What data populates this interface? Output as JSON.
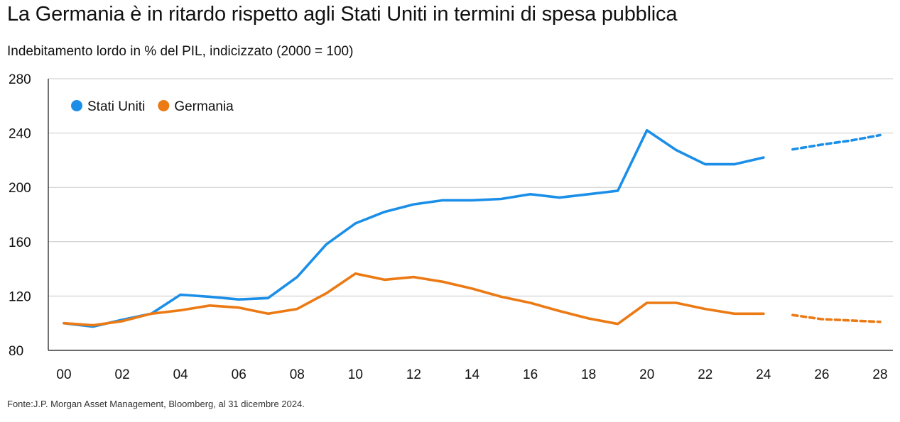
{
  "title": "La Germania è in ritardo rispetto agli Stati Uniti in termini di spesa pubblica",
  "subtitle": "Indebitamento lordo in % del PIL, indicizzato (2000 = 100)",
  "source": "Fonte:J.P. Morgan Asset Management, Bloomberg, al 31 dicembre 2024.",
  "chart_data": {
    "type": "line",
    "title": "La Germania è in ritardo rispetto agli Stati Uniti in termini di spesa pubblica",
    "subtitle": "Indebitamento lordo in % del PIL, indicizzato (2000 = 100)",
    "xlabel": "",
    "ylabel": "",
    "xlim": [
      2000,
      2028
    ],
    "ylim": [
      80,
      280
    ],
    "x_ticks": [
      2000,
      2002,
      2004,
      2006,
      2008,
      2010,
      2012,
      2014,
      2016,
      2018,
      2020,
      2022,
      2024,
      2026,
      2028
    ],
    "x_tick_labels": [
      "00",
      "02",
      "04",
      "06",
      "08",
      "10",
      "12",
      "14",
      "16",
      "18",
      "20",
      "22",
      "24",
      "26",
      "28"
    ],
    "y_ticks": [
      80,
      120,
      160,
      200,
      240,
      280
    ],
    "y_tick_labels": [
      "80",
      "120",
      "160",
      "200",
      "240",
      "280"
    ],
    "grid": "horizontal",
    "legend_position": "top-left",
    "series": [
      {
        "name": "Stati Uniti",
        "color": "#1b8fe8",
        "x": [
          2000,
          2001,
          2002,
          2003,
          2004,
          2005,
          2006,
          2007,
          2008,
          2009,
          2010,
          2011,
          2012,
          2013,
          2014,
          2015,
          2016,
          2017,
          2018,
          2019,
          2020,
          2021,
          2022,
          2023,
          2024
        ],
        "values": [
          100,
          97.5,
          102.5,
          107,
          121,
          119.5,
          117.5,
          118.5,
          134,
          158,
          173.5,
          182,
          187.5,
          190.5,
          190.5,
          191.5,
          195,
          192.5,
          195,
          197.5,
          242,
          227.5,
          217,
          217,
          222
        ],
        "forecast_x": [
          2025,
          2026,
          2027,
          2028
        ],
        "forecast_values": [
          228,
          231.5,
          234.5,
          238.5
        ]
      },
      {
        "name": "Germania",
        "color": "#ec7a14",
        "x": [
          2000,
          2001,
          2002,
          2003,
          2004,
          2005,
          2006,
          2007,
          2008,
          2009,
          2010,
          2011,
          2012,
          2013,
          2014,
          2015,
          2016,
          2017,
          2018,
          2019,
          2020,
          2021,
          2022,
          2023,
          2024
        ],
        "values": [
          100,
          98.5,
          101.5,
          107,
          109.5,
          113,
          111.5,
          107,
          110.5,
          122,
          136.5,
          132,
          134,
          130.5,
          125.5,
          119.5,
          115,
          109,
          103.5,
          99.5,
          115,
          115,
          110.5,
          107,
          107
        ],
        "forecast_x": [
          2025,
          2026,
          2027,
          2028
        ],
        "forecast_values": [
          106,
          103,
          102,
          101
        ]
      }
    ]
  }
}
